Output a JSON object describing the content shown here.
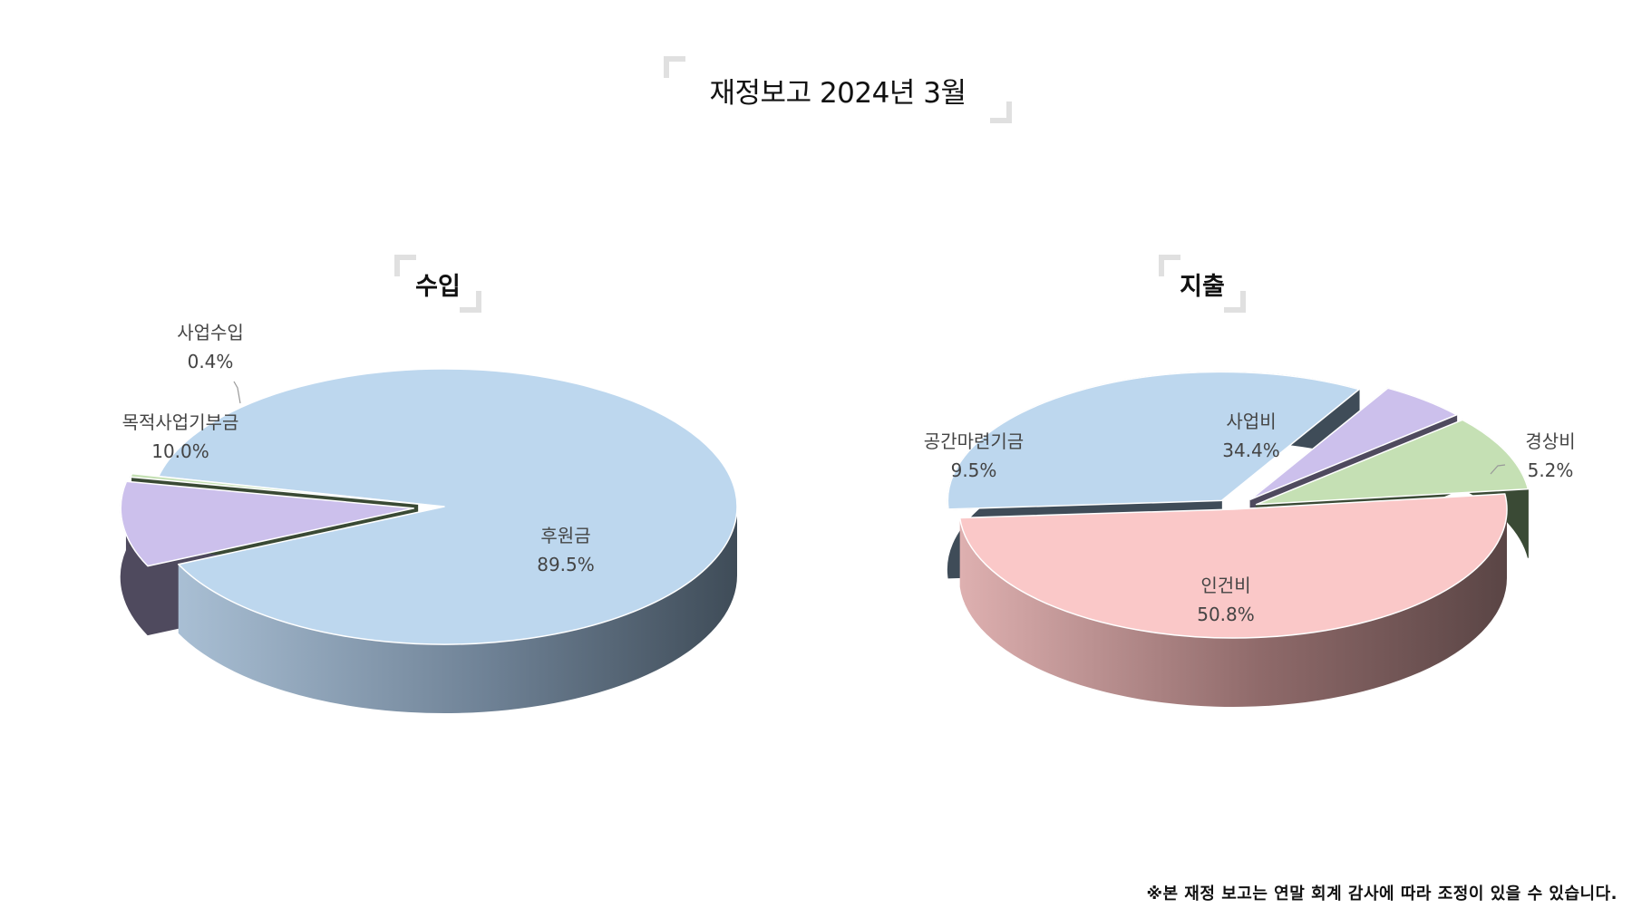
{
  "title": "재정보고 2024년 3월",
  "footnote": "※본 재정 보고는 연말 회계 감사에 따라 조정이 있을 수 있습니다.",
  "chart_data": [
    {
      "type": "pie",
      "title": "수입",
      "labels": [
        "후원금",
        "목적사업기부금",
        "사업수입"
      ],
      "values": [
        89.5,
        10.0,
        0.4
      ],
      "percent_labels": [
        "89.5%",
        "10.0%",
        "0.4%"
      ],
      "colors": [
        "#bdd7ee",
        "#ccc0ec",
        "#c5e0b4"
      ]
    },
    {
      "type": "pie",
      "title": "지출",
      "labels": [
        "인건비",
        "사업비",
        "경상비",
        "공간마련기금"
      ],
      "values": [
        50.8,
        34.4,
        5.2,
        9.5
      ],
      "percent_labels": [
        "50.8%",
        "34.4%",
        "5.2%",
        "9.5%"
      ],
      "colors": [
        "#fac8c8",
        "#bdd7ee",
        "#ccc0ec",
        "#c5e0b4"
      ]
    }
  ]
}
